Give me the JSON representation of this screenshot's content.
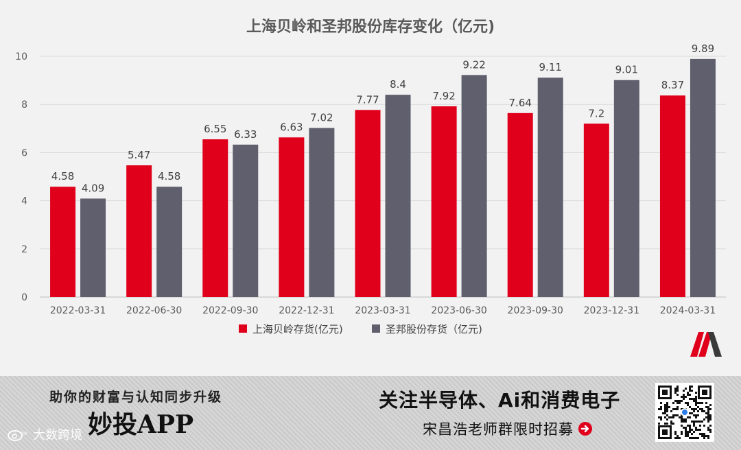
{
  "chart_data": {
    "type": "bar",
    "title": "上海贝岭和圣邦股份库存变化（亿元)",
    "categories": [
      "2022-03-31",
      "2022-06-30",
      "2022-09-30",
      "2022-12-31",
      "2023-03-31",
      "2023-06-30",
      "2023-09-30",
      "2023-12-31",
      "2024-03-31"
    ],
    "series": [
      {
        "name": "上海贝岭存货(亿元)",
        "color": "#e0001b",
        "values": [
          4.58,
          5.47,
          6.55,
          6.63,
          7.77,
          7.92,
          7.64,
          7.2,
          8.37
        ]
      },
      {
        "name": "圣邦股份存货（亿元)",
        "color": "#5f5f6e",
        "values": [
          4.09,
          4.58,
          6.33,
          7.02,
          8.4,
          9.22,
          9.11,
          9.01,
          9.89
        ]
      }
    ],
    "ylim": [
      0,
      10
    ],
    "yticks": [
      0,
      2,
      4,
      6,
      8,
      10
    ],
    "grid": true,
    "legend_position": "bottom"
  },
  "logo": {
    "name": "miaotou-logo-icon",
    "colors": [
      "#e0001b",
      "#3a3a3a"
    ]
  },
  "banner": {
    "left_top": "助你的财富与认知同步升级",
    "left_big": "妙投APP",
    "right_top": "关注半导体、Ai和消费电子",
    "right_sub": "宋昌浩老师群限时招募",
    "arrow_icon": "arrow-right-circle-icon",
    "qr_icon": "qr-code-icon"
  },
  "watermark": {
    "text": "大数跨境",
    "icon": "weibo-icon"
  }
}
